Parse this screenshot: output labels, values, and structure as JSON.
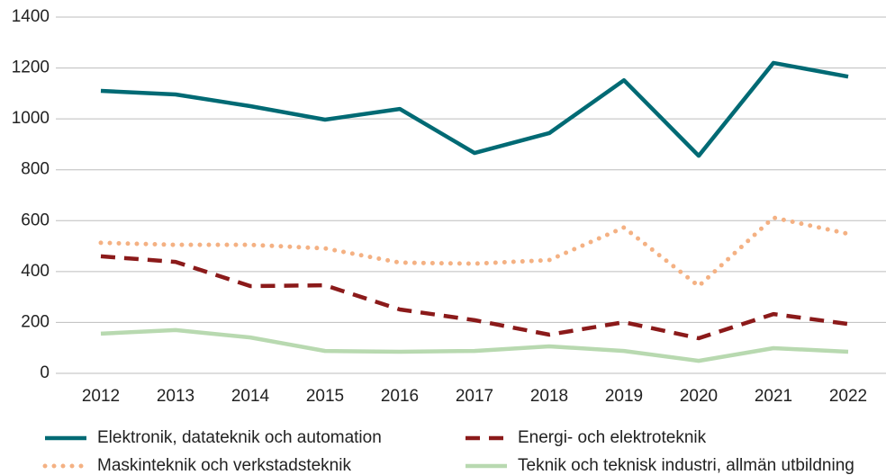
{
  "chart_data": {
    "type": "line",
    "categories": [
      "2012",
      "2013",
      "2014",
      "2015",
      "2016",
      "2017",
      "2018",
      "2019",
      "2020",
      "2021",
      "2022"
    ],
    "series": [
      {
        "name": "Elektronik, datateknik och automation",
        "color": "#006a74",
        "style": "solid",
        "values": [
          1110,
          1096,
          1050,
          997,
          1039,
          866,
          944,
          1152,
          855,
          1220,
          1166
        ]
      },
      {
        "name": "Energi- och elektroteknik",
        "color": "#8b1a1a",
        "style": "dashed",
        "values": [
          460,
          438,
          343,
          346,
          251,
          209,
          152,
          201,
          138,
          233,
          194
        ]
      },
      {
        "name": "Maskinteknik och verkstadsteknik",
        "color": "#f4b183",
        "style": "dotted",
        "values": [
          513,
          505,
          505,
          491,
          435,
          431,
          445,
          573,
          343,
          612,
          548
        ]
      },
      {
        "name": "Teknik och teknisk industri, allmän utbildning",
        "color": "#b8d9b0",
        "style": "solid",
        "values": [
          156,
          170,
          141,
          88,
          85,
          88,
          106,
          88,
          49,
          99,
          85
        ]
      }
    ],
    "ylim": [
      0,
      1400
    ],
    "yticks": [
      0,
      200,
      400,
      600,
      800,
      1000,
      1200,
      1400
    ],
    "grid": true,
    "legend": "bottom"
  }
}
